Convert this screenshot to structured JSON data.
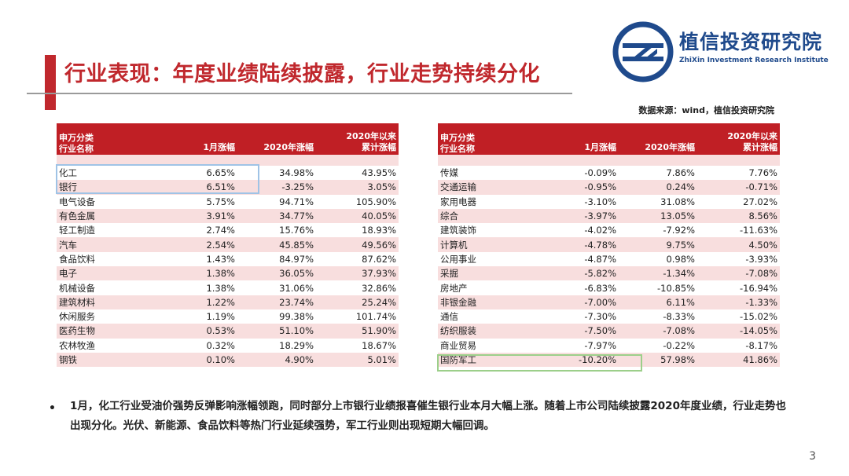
{
  "header": {
    "title": "行业表现：年度业绩陆续披露，行业走势持续分化",
    "brand_cn": "植信投资研究院",
    "brand_en": "ZhiXin Investment Research Institute",
    "logo_icon": "zhixin-logo-icon",
    "accent_color": "#c0282d",
    "brand_color": "#1f4a8c"
  },
  "source": "数据来源：wind，植信投资研究院",
  "table_headers": {
    "col0_line1": "申万分类",
    "col0_line2": "行业名称",
    "col1": "1月涨幅",
    "col2": "2020年涨幅",
    "col3_line1": "2020年以来",
    "col3_line2": "累计涨幅"
  },
  "left_rows": [
    {
      "name": "化工",
      "jan": "6.65%",
      "y2020": "34.98%",
      "cum": "43.95%"
    },
    {
      "name": "银行",
      "jan": "6.51%",
      "y2020": "-3.25%",
      "cum": "3.05%"
    },
    {
      "name": "电气设备",
      "jan": "5.75%",
      "y2020": "94.71%",
      "cum": "105.90%"
    },
    {
      "name": "有色金属",
      "jan": "3.91%",
      "y2020": "34.77%",
      "cum": "40.05%"
    },
    {
      "name": "轻工制造",
      "jan": "2.74%",
      "y2020": "15.76%",
      "cum": "18.93%"
    },
    {
      "name": "汽车",
      "jan": "2.54%",
      "y2020": "45.85%",
      "cum": "49.56%"
    },
    {
      "name": "食品饮料",
      "jan": "1.43%",
      "y2020": "84.97%",
      "cum": "87.62%"
    },
    {
      "name": "电子",
      "jan": "1.38%",
      "y2020": "36.05%",
      "cum": "37.93%"
    },
    {
      "name": "机械设备",
      "jan": "1.38%",
      "y2020": "31.06%",
      "cum": "32.86%"
    },
    {
      "name": "建筑材料",
      "jan": "1.22%",
      "y2020": "23.74%",
      "cum": "25.24%"
    },
    {
      "name": "休闲服务",
      "jan": "1.19%",
      "y2020": "99.38%",
      "cum": "101.74%"
    },
    {
      "name": "医药生物",
      "jan": "0.53%",
      "y2020": "51.10%",
      "cum": "51.90%"
    },
    {
      "name": "农林牧渔",
      "jan": "0.32%",
      "y2020": "18.29%",
      "cum": "18.67%"
    },
    {
      "name": "钢铁",
      "jan": "0.10%",
      "y2020": "4.90%",
      "cum": "5.01%"
    }
  ],
  "right_rows": [
    {
      "name": "传媒",
      "jan": "-0.09%",
      "y2020": "7.86%",
      "cum": "7.76%"
    },
    {
      "name": "交通运输",
      "jan": "-0.95%",
      "y2020": "0.24%",
      "cum": "-0.71%"
    },
    {
      "name": "家用电器",
      "jan": "-3.10%",
      "y2020": "31.08%",
      "cum": "27.02%"
    },
    {
      "name": "综合",
      "jan": "-3.97%",
      "y2020": "13.05%",
      "cum": "8.56%"
    },
    {
      "name": "建筑装饰",
      "jan": "-4.02%",
      "y2020": "-7.92%",
      "cum": "-11.63%"
    },
    {
      "name": "计算机",
      "jan": "-4.78%",
      "y2020": "9.75%",
      "cum": "4.50%"
    },
    {
      "name": "公用事业",
      "jan": "-4.87%",
      "y2020": "0.98%",
      "cum": "-3.93%"
    },
    {
      "name": "采掘",
      "jan": "-5.82%",
      "y2020": "-1.34%",
      "cum": "-7.08%"
    },
    {
      "name": "房地产",
      "jan": "-6.83%",
      "y2020": "-10.85%",
      "cum": "-16.94%"
    },
    {
      "name": "非银金融",
      "jan": "-7.00%",
      "y2020": "6.11%",
      "cum": "-1.33%"
    },
    {
      "name": "通信",
      "jan": "-7.30%",
      "y2020": "-8.33%",
      "cum": "-15.02%"
    },
    {
      "name": "纺织服装",
      "jan": "-7.50%",
      "y2020": "-7.08%",
      "cum": "-14.05%"
    },
    {
      "name": "商业贸易",
      "jan": "-7.97%",
      "y2020": "-0.22%",
      "cum": "-8.17%"
    },
    {
      "name": "国防军工",
      "jan": "-10.20%",
      "y2020": "57.98%",
      "cum": "41.86%"
    }
  ],
  "summary": {
    "bullet": "•",
    "text": "1月，化工行业受油价强势反弹影响涨幅领跑，同时部分上市银行业绩报喜催生银行业本月大幅上涨。随着上市公司陆续披露2020年度业绩，行业走势也出现分化。光伏、新能源、食品饮料等热门行业延续强势，军工行业则出现短期大幅回调。"
  },
  "page_number": "3"
}
